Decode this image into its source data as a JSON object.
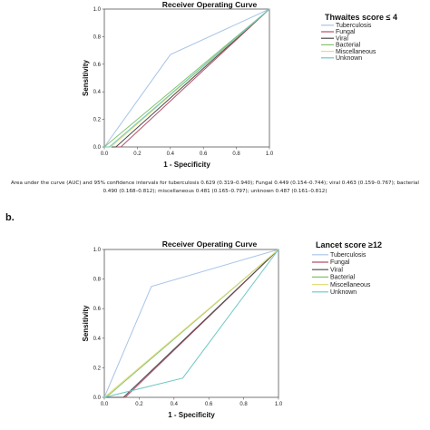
{
  "panel_b_letter": "b.",
  "caption": "Area under the curve (AUC) and 95% confidence intervals for tuberculosis 0.629 (0.319–0.940); Fungal 0.449 (0.154–0.744); viral 0.463 (0.159–0.767); bacterial 0.490 (0.168–0.812); miscellaneous 0.481 (0.165–0.797); unknown 0.487 (0.161–0.812)",
  "colors": {
    "tuberculosis": "#a8c4e6",
    "fungal": "#b3506a",
    "viral": "#4a4a4a",
    "bacterial": "#86c26e",
    "miscellaneous": "#e3dc7c",
    "unknown": "#6cc6c4",
    "reference": "#666666"
  },
  "chart_data": [
    {
      "type": "line",
      "title": "Receiver Operating Curve",
      "legend_title": "Thwaites score ≤ 4",
      "legend_position": "top-right",
      "xlabel": "1 - Specificity",
      "ylabel": "Sensitivity",
      "xlim": [
        0,
        1
      ],
      "ylim": [
        0,
        1
      ],
      "xticks": [
        "0.0",
        "0.2",
        "0.4",
        "0.6",
        "0.8",
        "1.0"
      ],
      "yticks": [
        "0.0",
        "0.2",
        "0.4",
        "0.6",
        "0.8",
        "1.0"
      ],
      "grid": false,
      "series": [
        {
          "name": "Tuberculosis",
          "color_key": "tuberculosis",
          "x": [
            0,
            0.4,
            1
          ],
          "y": [
            0,
            0.67,
            1
          ]
        },
        {
          "name": "Fungal",
          "color_key": "fungal",
          "x": [
            0,
            0.1,
            1
          ],
          "y": [
            0,
            0,
            1
          ]
        },
        {
          "name": "Viral",
          "color_key": "viral",
          "x": [
            0,
            0.07,
            1
          ],
          "y": [
            0,
            0,
            1
          ]
        },
        {
          "name": "Bacterial",
          "color_key": "bacterial",
          "x": [
            0,
            1
          ],
          "y": [
            0,
            1
          ]
        },
        {
          "name": "Miscellaneous",
          "color_key": "miscellaneous",
          "x": [
            0,
            0.04,
            1
          ],
          "y": [
            0,
            0,
            1
          ]
        },
        {
          "name": "Unknown",
          "color_key": "unknown",
          "x": [
            0,
            0.03,
            1
          ],
          "y": [
            0,
            0,
            1
          ]
        }
      ]
    },
    {
      "type": "line",
      "title": "Receiver Operating Curve",
      "legend_title": "Lancet score ≥12",
      "legend_position": "top-right",
      "xlabel": "1 - Specificity",
      "ylabel": "Sensitivity",
      "xlim": [
        0,
        1
      ],
      "ylim": [
        0,
        1
      ],
      "xticks": [
        "0.0",
        "0.2",
        "0.4",
        "0.6",
        "0.8",
        "1.0"
      ],
      "yticks": [
        "0.0",
        "0.2",
        "0.4",
        "0.6",
        "0.8",
        "1.0"
      ],
      "grid": false,
      "series": [
        {
          "name": "Tuberculosis",
          "color_key": "tuberculosis",
          "x": [
            0,
            0.27,
            1
          ],
          "y": [
            0,
            0.75,
            1
          ]
        },
        {
          "name": "Fungal",
          "color_key": "fungal",
          "x": [
            0,
            0.12,
            1
          ],
          "y": [
            0,
            0,
            1
          ]
        },
        {
          "name": "Viral",
          "color_key": "viral",
          "x": [
            0,
            0.11,
            1
          ],
          "y": [
            0,
            0,
            1
          ]
        },
        {
          "name": "Bacterial",
          "color_key": "bacterial",
          "x": [
            0,
            0.03,
            1
          ],
          "y": [
            0,
            0.02,
            1
          ]
        },
        {
          "name": "Miscellaneous",
          "color_key": "miscellaneous",
          "x": [
            0,
            0.2,
            1
          ],
          "y": [
            0,
            0.2,
            1
          ]
        },
        {
          "name": "Unknown",
          "color_key": "unknown",
          "x": [
            0,
            0.45,
            1
          ],
          "y": [
            0,
            0.13,
            1
          ]
        }
      ]
    }
  ]
}
